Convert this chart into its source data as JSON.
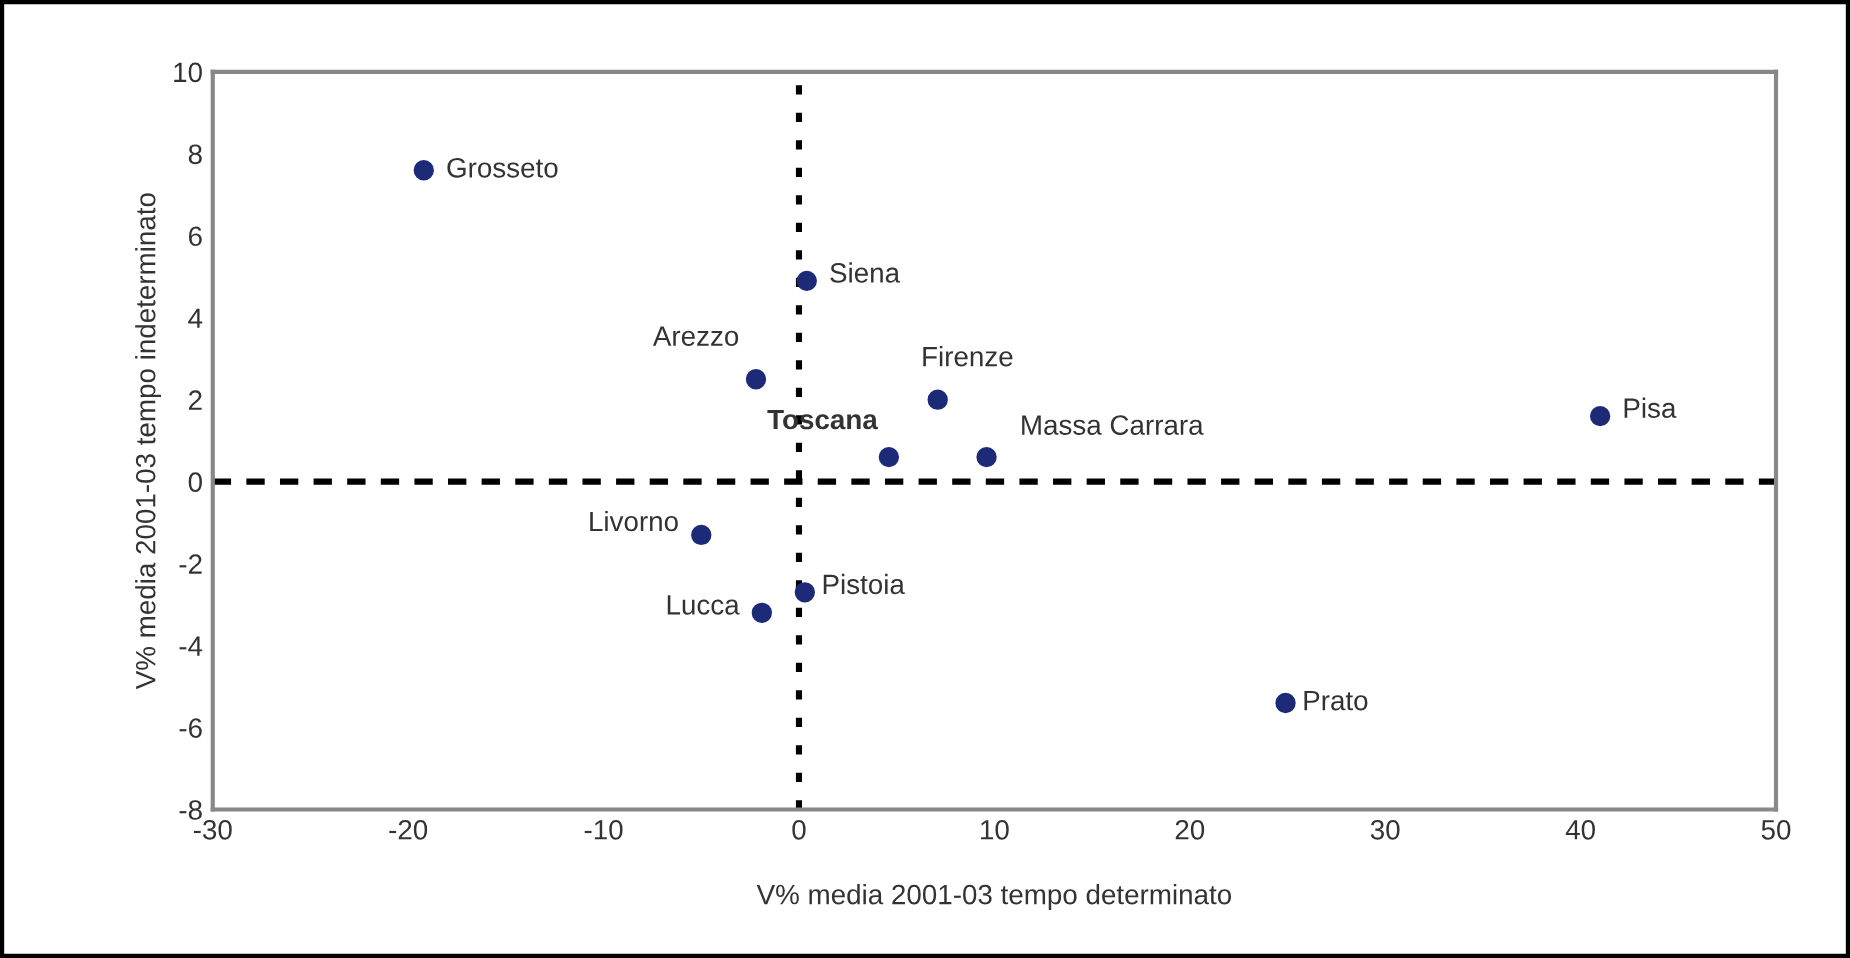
{
  "chart_data": {
    "type": "scatter",
    "xlabel": "V% media 2001-03 tempo determinato",
    "ylabel": "V% media 2001-03 tempo indeterminato",
    "xlim": [
      -30,
      50
    ],
    "xticks": [
      -30,
      -20,
      -10,
      0,
      10,
      20,
      30,
      40,
      50
    ],
    "ylim": [
      -8,
      10
    ],
    "yticks": [
      -8,
      -6,
      -4,
      -2,
      0,
      2,
      4,
      6,
      8,
      10
    ],
    "grid": false,
    "legend": false,
    "marker": "circle",
    "series": [
      {
        "color": "#1c2a78",
        "x": [
          -19.2,
          0.4,
          -2.2,
          7.1,
          9.6,
          41,
          -5,
          -1.9,
          0.3,
          24.9
        ],
        "values": [
          7.6,
          4.9,
          2.5,
          2.0,
          0.6,
          1.6,
          -1.3,
          -3.2,
          -2.7,
          -5.4
        ]
      },
      {
        "name": "Toscana",
        "color": "#1c2a78",
        "x": [
          4.6
        ],
        "values": [
          0.6
        ]
      }
    ],
    "annotations": [
      {
        "text": "Grosseto",
        "x": -19.2,
        "y": 7.6
      },
      {
        "text": "Siena",
        "x": 0.4,
        "y": 4.9
      },
      {
        "text": "Arezzo",
        "x": -2.2,
        "y": 2.5
      },
      {
        "text": "Firenze",
        "x": 7.1,
        "y": 2.0
      },
      {
        "text": "Massa Carrara",
        "x": 9.6,
        "y": 0.6
      },
      {
        "text": "Pisa",
        "x": 41,
        "y": 1.6
      },
      {
        "text": "Livorno",
        "x": -5,
        "y": -1.3
      },
      {
        "text": "Lucca",
        "x": -1.9,
        "y": -3.2
      },
      {
        "text": "Pistoia",
        "x": 0.3,
        "y": -2.7
      },
      {
        "text": "Prato",
        "x": 24.9,
        "y": -5.4
      }
    ],
    "ref_lines": [
      {
        "axis": "x",
        "value": 0,
        "color": "#000000",
        "line_style": "dotted"
      },
      {
        "axis": "y",
        "value": 0,
        "color": "#000000",
        "line_style": "dashed"
      }
    ]
  }
}
